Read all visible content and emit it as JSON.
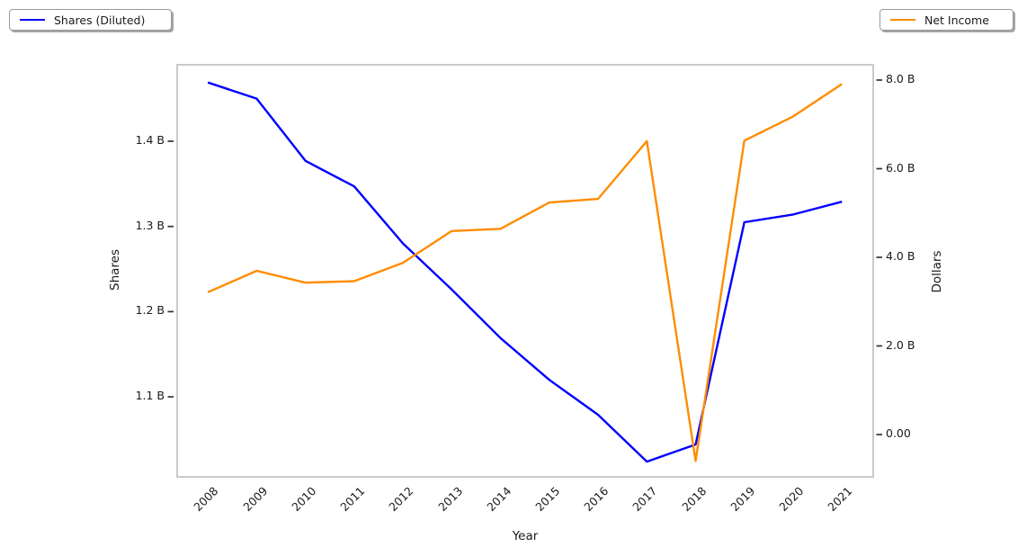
{
  "chart_data": {
    "type": "line",
    "title": "",
    "xlabel": "Year",
    "grid": false,
    "x": [
      2008,
      2009,
      2010,
      2011,
      2012,
      2013,
      2014,
      2015,
      2016,
      2017,
      2018,
      2019,
      2020,
      2021
    ],
    "x_tick_labels": [
      "2008",
      "2009",
      "2010",
      "2011",
      "2012",
      "2013",
      "2014",
      "2015",
      "2016",
      "2017",
      "2018",
      "2019",
      "2020",
      "2021"
    ],
    "series": [
      {
        "name": "Shares (Diluted)",
        "axis": "left",
        "color": "#0000ff",
        "legend_position": "upper left",
        "values_unit": "B",
        "values": [
          1.469,
          1.45,
          1.377,
          1.347,
          1.28,
          1.226,
          1.169,
          1.12,
          1.079,
          1.024,
          1.044,
          1.305,
          1.314,
          1.329
        ]
      },
      {
        "name": "Net Income",
        "axis": "right",
        "color": "#ff8c00",
        "legend_position": "upper right",
        "values_unit": "B",
        "values": [
          3.212,
          3.696,
          3.427,
          3.461,
          3.877,
          4.592,
          4.644,
          5.237,
          5.317,
          6.622,
          -0.594,
          6.634,
          7.179,
          7.91
        ]
      }
    ],
    "left_axis": {
      "label": "Shares",
      "ticks": [
        {
          "value": 1.4,
          "label": "1.4 B"
        },
        {
          "value": 1.3,
          "label": "1.3 B"
        },
        {
          "value": 1.2,
          "label": "1.2 B"
        },
        {
          "value": 1.1,
          "label": "1.1 B"
        }
      ]
    },
    "right_axis": {
      "label": "Dollars",
      "ticks": [
        {
          "value": 8.0,
          "label": "8.0 B"
        },
        {
          "value": 6.0,
          "label": "6.0 B"
        },
        {
          "value": 4.0,
          "label": "4.0 B"
        },
        {
          "value": 2.0,
          "label": "2.0 B"
        },
        {
          "value": 0.0,
          "label": "0.00"
        }
      ]
    },
    "tick_color": "#333333",
    "spine_color": "#cacaca"
  }
}
